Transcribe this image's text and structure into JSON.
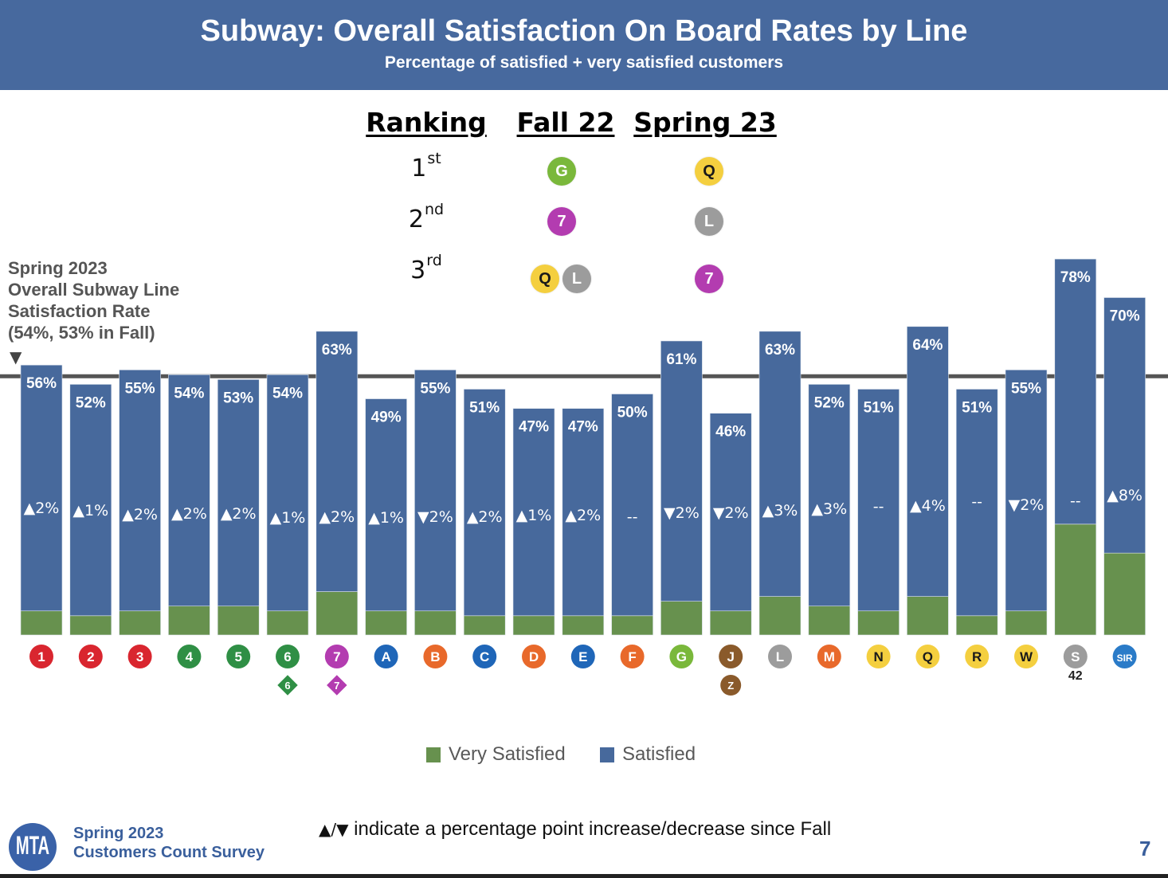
{
  "header": {
    "title": "Subway: Overall Satisfaction On Board Rates by Line",
    "subtitle": "Percentage of satisfied + very satisfied customers"
  },
  "ranking": {
    "headers": [
      "Ranking",
      "Fall 22",
      "Spring 23"
    ],
    "rows": [
      {
        "rank": "1",
        "suffix": "st",
        "fall": [
          "G"
        ],
        "spring": [
          "Q"
        ]
      },
      {
        "rank": "2",
        "suffix": "nd",
        "fall": [
          "7"
        ],
        "spring": [
          "L"
        ]
      },
      {
        "rank": "3",
        "suffix": "rd",
        "fall": [
          "Q",
          "L"
        ],
        "spring": [
          "7"
        ]
      }
    ]
  },
  "annotation": {
    "lines": [
      "Spring 2023",
      "Overall Subway Line",
      "Satisfaction Rate",
      "(54%, 53% in Fall)"
    ],
    "marker": "▼"
  },
  "line_colors": {
    "1": {
      "bg": "#d9262f",
      "fg": "#ffffff"
    },
    "2": {
      "bg": "#d9262f",
      "fg": "#ffffff"
    },
    "3": {
      "bg": "#d9262f",
      "fg": "#ffffff"
    },
    "4": {
      "bg": "#2f8f45",
      "fg": "#ffffff"
    },
    "5": {
      "bg": "#2f8f45",
      "fg": "#ffffff"
    },
    "6": {
      "bg": "#2f8f45",
      "fg": "#ffffff"
    },
    "7": {
      "bg": "#b33cb0",
      "fg": "#ffffff"
    },
    "A": {
      "bg": "#1f66b8",
      "fg": "#ffffff"
    },
    "B": {
      "bg": "#e8692b",
      "fg": "#ffffff"
    },
    "C": {
      "bg": "#1f66b8",
      "fg": "#ffffff"
    },
    "D": {
      "bg": "#e8692b",
      "fg": "#ffffff"
    },
    "E": {
      "bg": "#1f66b8",
      "fg": "#ffffff"
    },
    "F": {
      "bg": "#e8692b",
      "fg": "#ffffff"
    },
    "G": {
      "bg": "#7ab83b",
      "fg": "#ffffff"
    },
    "J": {
      "bg": "#8a5a2b",
      "fg": "#ffffff"
    },
    "Z": {
      "bg": "#8a5a2b",
      "fg": "#ffffff"
    },
    "L": {
      "bg": "#9c9c9c",
      "fg": "#ffffff"
    },
    "M": {
      "bg": "#e8692b",
      "fg": "#ffffff"
    },
    "N": {
      "bg": "#f4cf3f",
      "fg": "#1a1a1a"
    },
    "Q": {
      "bg": "#f4cf3f",
      "fg": "#1a1a1a"
    },
    "R": {
      "bg": "#f4cf3f",
      "fg": "#1a1a1a"
    },
    "W": {
      "bg": "#f4cf3f",
      "fg": "#1a1a1a"
    },
    "S": {
      "bg": "#9c9c9c",
      "fg": "#ffffff"
    },
    "SIR": {
      "bg": "#2a7bc8",
      "fg": "#ffffff"
    }
  },
  "chart_data": {
    "type": "bar",
    "stacked": true,
    "title": "Subway: Overall Satisfaction On Board Rates by Line",
    "subtitle": "Percentage of satisfied + very satisfied customers",
    "xlabel": "",
    "ylabel": "",
    "ylim": [
      0,
      80
    ],
    "grid": false,
    "categories": [
      "1",
      "2",
      "3",
      "4",
      "5",
      "6",
      "7",
      "A",
      "B",
      "C",
      "D",
      "E",
      "F",
      "G",
      "J",
      "L",
      "M",
      "N",
      "Q",
      "R",
      "W",
      "S",
      "SIR"
    ],
    "tick_sublabels": [
      {
        "index": 5,
        "label": "6",
        "shape": "diamond"
      },
      {
        "index": 6,
        "label": "7",
        "shape": "diamond"
      },
      {
        "index": 14,
        "label": "Z",
        "shape": "circle"
      },
      {
        "index": 21,
        "label": "42",
        "shape": "text"
      }
    ],
    "series": [
      {
        "name": "Very Satisfied",
        "color": "#67914e",
        "values": [
          5,
          4,
          5,
          6,
          6,
          5,
          9,
          5,
          5,
          4,
          4,
          4,
          4,
          7,
          5,
          8,
          6,
          5,
          8,
          4,
          5,
          23,
          17
        ]
      },
      {
        "name": "Satisfied",
        "color": "#47699c",
        "values": [
          51,
          48,
          50,
          48,
          47,
          49,
          54,
          44,
          50,
          47,
          43,
          43,
          46,
          54,
          41,
          55,
          46,
          46,
          56,
          47,
          50,
          55,
          53
        ]
      }
    ],
    "totals": [
      56,
      52,
      55,
      54,
      53,
      54,
      63,
      49,
      55,
      51,
      47,
      47,
      50,
      61,
      46,
      63,
      52,
      51,
      64,
      51,
      55,
      78,
      70
    ],
    "total_labels": [
      "56%",
      "52%",
      "55%",
      "54%",
      "53%",
      "54%",
      "63%",
      "49%",
      "55%",
      "51%",
      "47%",
      "47%",
      "50%",
      "61%",
      "46%",
      "63%",
      "52%",
      "51%",
      "64%",
      "51%",
      "55%",
      "78%",
      "70%"
    ],
    "change_values": [
      2,
      1,
      2,
      2,
      2,
      1,
      2,
      1,
      -2,
      2,
      1,
      2,
      null,
      -2,
      -2,
      3,
      3,
      null,
      4,
      null,
      -2,
      null,
      8
    ],
    "change_labels": [
      "▲2%",
      "▲1%",
      "▲2%",
      "▲2%",
      "▲2%",
      "▲1%",
      "▲2%",
      "▲1%",
      "▼2%",
      "▲2%",
      "▲1%",
      "▲2%",
      "--",
      "▼2%",
      "▼2%",
      "▲3%",
      "▲3%",
      "--",
      "▲4%",
      "--",
      "▼2%",
      "--",
      "▲8%"
    ],
    "reference_line": {
      "value": 54,
      "label": "Spring 2023 Overall Subway Line Satisfaction Rate (54%, 53% in Fall)",
      "color": "#555555"
    },
    "legend": {
      "position": "bottom",
      "entries": [
        {
          "label": "Very Satisfied",
          "color": "#67914e"
        },
        {
          "label": "Satisfied",
          "color": "#47699c"
        }
      ]
    }
  },
  "footer": {
    "logo_text": "MTA",
    "survey_line1": "Spring 2023",
    "survey_line2": "Customers Count Survey",
    "note_symbols": "▲/▼",
    "note_text": " indicate a percentage point increase/decrease since Fall",
    "page_number": "7"
  }
}
